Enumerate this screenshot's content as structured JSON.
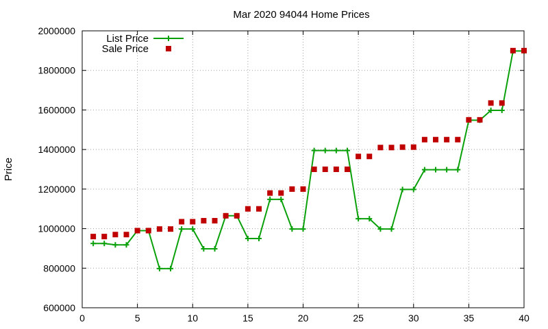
{
  "chart_data": {
    "type": "line",
    "title": "Mar 2020 94044 Home Prices",
    "xlabel": "",
    "ylabel": "Price",
    "xlim": [
      0,
      40
    ],
    "ylim": [
      600000,
      2000000
    ],
    "x_ticks": [
      0,
      5,
      10,
      15,
      20,
      25,
      30,
      35,
      40
    ],
    "y_ticks": [
      600000,
      800000,
      1000000,
      1200000,
      1400000,
      1600000,
      1800000,
      2000000
    ],
    "grid": true,
    "legend_position": "top-left",
    "x": [
      1,
      2,
      3,
      4,
      5,
      6,
      7,
      8,
      9,
      10,
      11,
      12,
      13,
      14,
      15,
      16,
      17,
      18,
      19,
      20,
      21,
      22,
      23,
      24,
      25,
      26,
      27,
      28,
      29,
      30,
      31,
      32,
      33,
      34,
      35,
      36,
      37,
      38,
      39,
      40
    ],
    "series": [
      {
        "name": "List Price",
        "style": "line-plus",
        "color": "#0aa00a",
        "values": [
          925000,
          925000,
          918000,
          918000,
          990000,
          990000,
          798000,
          798000,
          998000,
          998000,
          898000,
          898000,
          1065000,
          1065000,
          950000,
          950000,
          1148000,
          1148000,
          998000,
          998000,
          1395000,
          1395000,
          1395000,
          1395000,
          1050000,
          1050000,
          998000,
          998000,
          1198000,
          1198000,
          1298000,
          1298000,
          1298000,
          1298000,
          1548000,
          1548000,
          1598000,
          1598000,
          1898000,
          1898000
        ]
      },
      {
        "name": "Sale Price",
        "style": "square-points",
        "color": "#c00000",
        "values": [
          960000,
          960000,
          970000,
          970000,
          990000,
          990000,
          998000,
          998000,
          1035000,
          1035000,
          1040000,
          1040000,
          1065000,
          1065000,
          1100000,
          1100000,
          1180000,
          1180000,
          1200000,
          1200000,
          1300000,
          1300000,
          1300000,
          1300000,
          1365000,
          1365000,
          1410000,
          1410000,
          1412000,
          1412000,
          1450000,
          1450000,
          1450000,
          1450000,
          1550000,
          1550000,
          1635000,
          1635000,
          1900000,
          1900000
        ]
      }
    ]
  }
}
